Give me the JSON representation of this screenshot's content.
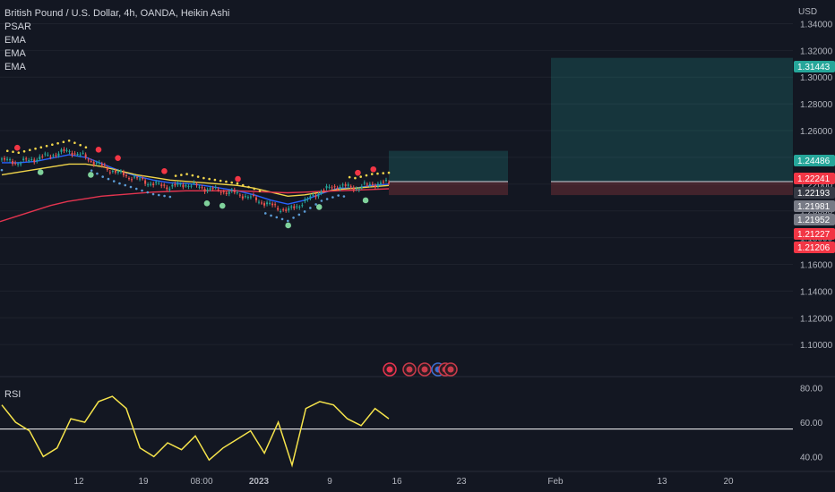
{
  "title": "British Pound / U.S. Dollar, 4h, OANDA, Heikin Ashi",
  "indicators": [
    "PSAR",
    "EMA",
    "EMA",
    "EMA"
  ],
  "rsi_label": "RSI",
  "currency": "USD",
  "colors": {
    "background": "#131722",
    "up": "#26a69a",
    "down": "#ef5350",
    "ema_fast": "#2962ff",
    "ema_mid": "#f0d44a",
    "ema_slow": "#e3344f",
    "rsi": "#f5e34b"
  },
  "chart_data": [
    {
      "type": "line",
      "title": "British Pound / U.S. Dollar, 4h, OANDA, Heikin Ashi",
      "ylabel": "USD",
      "ylim": [
        1.08,
        1.35
      ],
      "yticks": [
        "1.34000",
        "1.32000",
        "1.30000",
        "1.28000",
        "1.26000",
        "1.24000",
        "1.22000",
        "1.20000",
        "1.18000",
        "1.16000",
        "1.14000",
        "1.12000",
        "1.10000"
      ],
      "x_ticks": [
        "12",
        "19",
        "08:00",
        "2023",
        "9",
        "16",
        "23",
        "Feb",
        "13",
        "20"
      ],
      "price_tags": [
        {
          "label": "1.31443",
          "color": "#26a69a"
        },
        {
          "label": "1.24486",
          "color": "#26a69a"
        },
        {
          "label": "1.22241",
          "color": "#f23645"
        },
        {
          "label": "1.22193",
          "color": "#363a45"
        },
        {
          "label": "1.21981",
          "color": "#787b86"
        },
        {
          "label": "1.21952",
          "color": "#787b86"
        },
        {
          "label": "1.21227",
          "color": "#f23645"
        },
        {
          "label": "1.21206",
          "color": "#f23645"
        }
      ],
      "positions": [
        {
          "entry": 1.2219,
          "target": 1.2449,
          "stop": 1.2118
        },
        {
          "entry": 1.2219,
          "target": 1.3144,
          "stop": 1.2118
        }
      ],
      "series": [
        {
          "name": "Heikin Ashi close",
          "values": [
            1.238,
            1.236,
            1.239,
            1.242,
            1.245,
            1.24,
            1.233,
            1.228,
            1.224,
            1.22,
            1.218,
            1.22,
            1.217,
            1.215,
            1.213,
            1.209,
            1.204,
            1.2,
            1.207,
            1.215,
            1.219,
            1.217,
            1.22,
            1.221
          ]
        },
        {
          "name": "EMA",
          "values": [
            1.236,
            1.236,
            1.237,
            1.2395,
            1.242,
            1.24,
            1.235,
            1.23,
            1.226,
            1.223,
            1.221,
            1.2205,
            1.219,
            1.217,
            1.215,
            1.212,
            1.208,
            1.205,
            1.208,
            1.213,
            1.217,
            1.217,
            1.219,
            1.22
          ]
        },
        {
          "name": "EMA",
          "values": [
            1.227,
            1.229,
            1.231,
            1.233,
            1.235,
            1.235,
            1.233,
            1.23,
            1.227,
            1.225,
            1.223,
            1.222,
            1.221,
            1.22,
            1.219,
            1.217,
            1.214,
            1.211,
            1.212,
            1.214,
            1.216,
            1.217,
            1.218,
            1.219
          ]
        },
        {
          "name": "EMA",
          "values": [
            1.192,
            1.196,
            1.2,
            1.204,
            1.207,
            1.209,
            1.211,
            1.212,
            1.213,
            1.214,
            1.2145,
            1.215,
            1.215,
            1.215,
            1.215,
            1.2145,
            1.214,
            1.2135,
            1.214,
            1.2145,
            1.215,
            1.2155,
            1.216,
            1.2165
          ]
        }
      ]
    },
    {
      "type": "line",
      "title": "RSI",
      "ylim": [
        35,
        85
      ],
      "yticks": [
        "80.00",
        "60.00",
        "40.00"
      ],
      "series": [
        {
          "name": "RSI",
          "values": [
            70,
            60,
            55,
            40,
            45,
            62,
            60,
            72,
            75,
            68,
            45,
            40,
            48,
            44,
            52,
            38,
            45,
            50,
            55,
            42,
            60,
            35,
            68,
            72,
            70,
            62,
            58,
            68,
            62
          ]
        }
      ]
    }
  ]
}
